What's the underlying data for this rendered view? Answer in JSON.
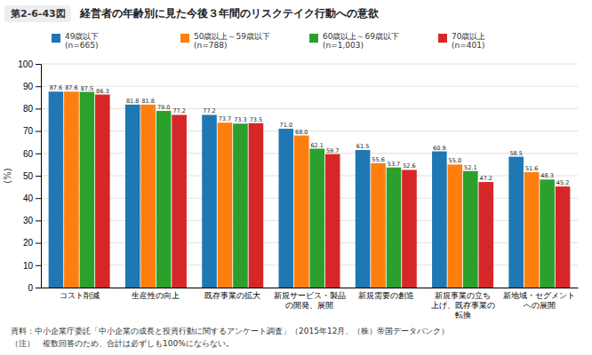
{
  "chart_data": {
    "type": "bar",
    "title": "経営者の年齢別に見た今後３年間のリスクテイク行動への意欲",
    "annotations": [
      "第2-6-43図",
      "資料：中小企業庁委託「中小企業の成長と投資行動に関するアンケート調査」（2015年12月、（株）帝国データバンク）",
      "（注）　複数回答のため、合計は必ずしも100%にならない。"
    ],
    "ylabel": "(%)",
    "categories": [
      "コスト削減",
      "生産性の向上",
      "既存事業の拡大",
      "新規サービス・製品\nの開発、展開",
      "新規需要の創造",
      "新規事業の立ち\n上げ、既存事業の\n転換",
      "新地域・セグメント\nへの展開"
    ],
    "series": [
      {
        "name": "49歳以下\n(n=665)",
        "values": [
          87.6,
          81.8,
          77.2,
          71.0,
          61.5,
          60.9,
          58.5
        ],
        "value_labels": [
          "87.6",
          "81.8",
          "77.2",
          "71.0",
          "61.5",
          "60.9",
          "58.5"
        ]
      },
      {
        "name": "50歳以上～59歳以下\n(n=788)",
        "values": [
          87.6,
          81.8,
          73.7,
          68.0,
          55.6,
          55.0,
          51.6
        ],
        "value_labels": [
          "87.6",
          "81.8",
          "73.7",
          "68.0",
          "55.6",
          "55.0",
          "51.6"
        ]
      },
      {
        "name": "60歳以上～69歳以下\n(n=1,003)",
        "values": [
          87.5,
          79.0,
          73.3,
          62.1,
          53.7,
          52.1,
          48.3
        ],
        "value_labels": [
          "87.5",
          "79.0",
          "73.3",
          "62.1",
          "53.7",
          "52.1",
          "48.3"
        ]
      },
      {
        "name": "70歳以上\n(n=401)",
        "values": [
          86.3,
          77.2,
          73.5,
          59.7,
          52.6,
          47.2,
          45.2
        ],
        "value_labels": [
          "86.3",
          "77.2",
          "73.5",
          "59.7",
          "52.6",
          "47.2",
          "45.2"
        ]
      }
    ],
    "ylim": [
      0,
      100
    ],
    "yticks": [
      0,
      10,
      20,
      30,
      40,
      50,
      60,
      70,
      80,
      90,
      100
    ],
    "grid": true,
    "data_labels": true
  }
}
